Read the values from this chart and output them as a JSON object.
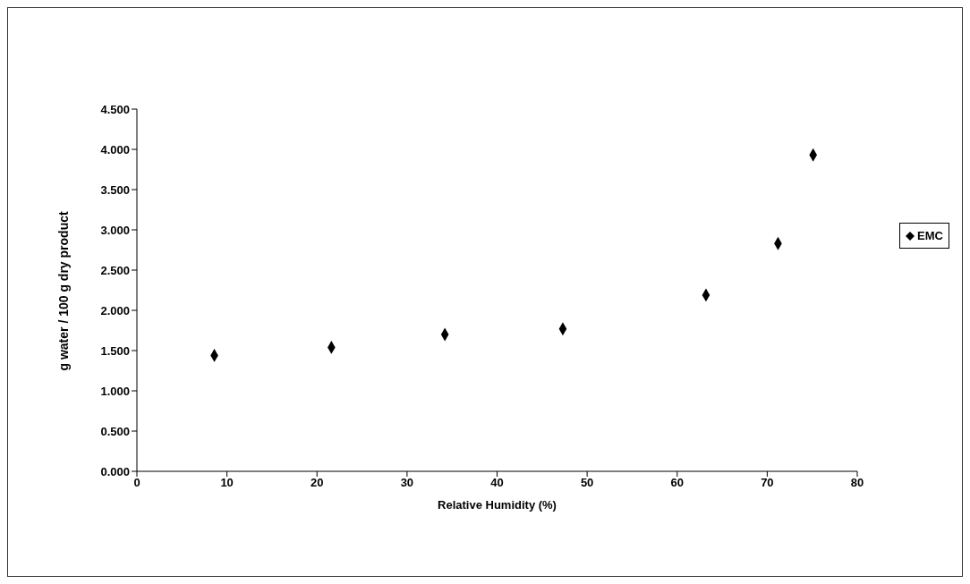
{
  "chart_data": {
    "type": "scatter",
    "xlabel": "Relative Humidity (%)",
    "ylabel": "g water / 100 g dry product",
    "x": [
      8.6,
      21.6,
      34.2,
      47.3,
      63.2,
      71.2,
      75.1
    ],
    "series": [
      {
        "name": "EMC",
        "color": "#000000",
        "values": [
          1.44,
          1.54,
          1.7,
          1.77,
          2.19,
          2.83,
          3.93
        ]
      }
    ],
    "xlim": [
      0,
      80
    ],
    "xticks": [
      0,
      10,
      20,
      30,
      40,
      50,
      60,
      70,
      80
    ],
    "ylim": [
      0,
      4.5
    ],
    "yticks": [
      {
        "value": 0,
        "label": "0.000"
      },
      {
        "value": 0.5,
        "label": "0.500"
      },
      {
        "value": 1,
        "label": "1.000"
      },
      {
        "value": 1.5,
        "label": "1.500"
      },
      {
        "value": 2,
        "label": "2.000"
      },
      {
        "value": 2.5,
        "label": "2.500"
      },
      {
        "value": 3,
        "label": "3.000"
      },
      {
        "value": 3.5,
        "label": "3.500"
      },
      {
        "value": 4,
        "label": "4.000"
      },
      {
        "value": 4.5,
        "label": "4.500"
      }
    ],
    "grid": false,
    "legend": "right",
    "marker": "diamond"
  }
}
